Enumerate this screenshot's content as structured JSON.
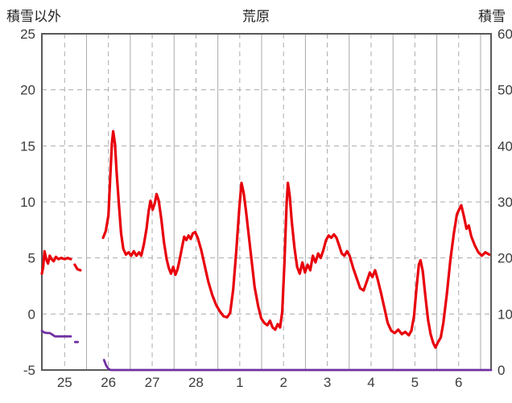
{
  "header": {
    "left_axis_title": "積雪以外",
    "title": "荒原",
    "right_axis_title": "積雪"
  },
  "chart_data": {
    "type": "line",
    "title": "荒原",
    "left_axis": {
      "label": "積雪以外",
      "min": -5,
      "max": 25,
      "ticks": [
        25,
        20,
        15,
        10,
        5,
        0,
        -5
      ]
    },
    "right_axis": {
      "label": "積雪",
      "min": 0,
      "max": 60,
      "ticks": [
        60,
        50,
        40,
        30,
        20,
        10,
        0
      ]
    },
    "x_axis": {
      "domain": [
        24.48,
        34.74
      ],
      "tick_days": [
        25,
        26,
        27,
        28,
        29,
        30,
        31,
        32,
        33,
        34
      ],
      "tick_labels": [
        "25",
        "26",
        "27",
        "28",
        "1",
        "2",
        "3",
        "4",
        "5",
        "6"
      ]
    },
    "grid": {
      "color": "#ababab",
      "h_dashed": [
        20,
        15,
        10,
        5,
        0
      ],
      "v_dashed_days": [
        25,
        26,
        27,
        28,
        29,
        30,
        31,
        32,
        33,
        34
      ],
      "v_solid_days": [
        25.5,
        26.5,
        27.5,
        28.5,
        29.5,
        30.5,
        31.5,
        32.5,
        33.5,
        34.5
      ]
    },
    "border_color": "#595959",
    "series": [
      {
        "name": "non-snow-temperature",
        "axis": "left",
        "color": "#e8000b",
        "width": 3.2,
        "segments": [
          [
            [
              24.48,
              3.6
            ],
            [
              24.51,
              4.2
            ],
            [
              24.54,
              5.6
            ],
            [
              24.58,
              4.9
            ],
            [
              24.62,
              4.5
            ],
            [
              24.66,
              5.2
            ],
            [
              24.7,
              4.9
            ],
            [
              24.75,
              4.7
            ],
            [
              24.8,
              5.1
            ],
            [
              24.86,
              4.9
            ],
            [
              24.92,
              5.0
            ],
            [
              25.0,
              4.9
            ],
            [
              25.07,
              5.0
            ],
            [
              25.14,
              4.9
            ]
          ],
          [
            [
              25.23,
              4.4
            ],
            [
              25.29,
              4.0
            ],
            [
              25.36,
              3.9
            ]
          ],
          [
            [
              25.88,
              6.8
            ],
            [
              25.94,
              7.4
            ],
            [
              26.0,
              8.8
            ],
            [
              26.04,
              12.0
            ],
            [
              26.08,
              15.2
            ],
            [
              26.11,
              16.3
            ],
            [
              26.15,
              15.2
            ],
            [
              26.19,
              12.5
            ],
            [
              26.24,
              9.8
            ],
            [
              26.29,
              7.2
            ],
            [
              26.34,
              5.8
            ],
            [
              26.4,
              5.3
            ],
            [
              26.46,
              5.5
            ],
            [
              26.52,
              5.2
            ],
            [
              26.58,
              5.6
            ],
            [
              26.64,
              5.2
            ],
            [
              26.7,
              5.5
            ],
            [
              26.75,
              5.2
            ],
            [
              26.81,
              6.2
            ],
            [
              26.87,
              7.6
            ],
            [
              26.92,
              9.2
            ],
            [
              26.96,
              10.1
            ],
            [
              27.01,
              9.3
            ],
            [
              27.06,
              9.9
            ],
            [
              27.1,
              10.7
            ],
            [
              27.15,
              10.1
            ],
            [
              27.21,
              8.4
            ],
            [
              27.27,
              6.4
            ],
            [
              27.33,
              4.9
            ],
            [
              27.38,
              4.1
            ],
            [
              27.43,
              3.6
            ],
            [
              27.48,
              4.2
            ],
            [
              27.53,
              3.5
            ],
            [
              27.58,
              4.0
            ],
            [
              27.63,
              4.9
            ],
            [
              27.68,
              5.9
            ],
            [
              27.73,
              6.9
            ],
            [
              27.78,
              6.6
            ],
            [
              27.83,
              7.0
            ],
            [
              27.88,
              6.7
            ],
            [
              27.93,
              7.2
            ],
            [
              27.98,
              7.3
            ],
            [
              28.04,
              6.8
            ],
            [
              28.12,
              5.7
            ],
            [
              28.2,
              4.3
            ],
            [
              28.28,
              2.9
            ],
            [
              28.37,
              1.7
            ],
            [
              28.46,
              0.8
            ],
            [
              28.55,
              0.2
            ],
            [
              28.63,
              -0.2
            ],
            [
              28.71,
              -0.3
            ],
            [
              28.78,
              0.1
            ],
            [
              28.85,
              2.2
            ],
            [
              28.92,
              5.6
            ],
            [
              28.99,
              9.5
            ],
            [
              29.04,
              11.7
            ],
            [
              29.09,
              10.8
            ],
            [
              29.14,
              9.3
            ],
            [
              29.2,
              7.2
            ],
            [
              29.27,
              4.8
            ],
            [
              29.34,
              2.4
            ],
            [
              29.42,
              0.7
            ],
            [
              29.49,
              -0.4
            ],
            [
              29.56,
              -0.8
            ],
            [
              29.63,
              -1.0
            ],
            [
              29.69,
              -0.6
            ],
            [
              29.75,
              -1.2
            ],
            [
              29.81,
              -1.4
            ],
            [
              29.87,
              -0.9
            ],
            [
              29.92,
              -1.2
            ],
            [
              29.97,
              0.2
            ],
            [
              30.02,
              4.5
            ],
            [
              30.07,
              9.8
            ],
            [
              30.1,
              11.7
            ],
            [
              30.14,
              10.6
            ],
            [
              30.19,
              8.2
            ],
            [
              30.25,
              5.9
            ],
            [
              30.31,
              4.2
            ],
            [
              30.37,
              3.6
            ],
            [
              30.43,
              4.6
            ],
            [
              30.49,
              3.7
            ],
            [
              30.55,
              4.4
            ],
            [
              30.61,
              3.9
            ],
            [
              30.67,
              5.2
            ],
            [
              30.73,
              4.6
            ],
            [
              30.79,
              5.4
            ],
            [
              30.85,
              5.0
            ],
            [
              30.91,
              5.7
            ],
            [
              30.97,
              6.6
            ],
            [
              31.03,
              7.0
            ],
            [
              31.09,
              6.8
            ],
            [
              31.15,
              7.1
            ],
            [
              31.21,
              6.8
            ],
            [
              31.27,
              6.1
            ],
            [
              31.33,
              5.4
            ],
            [
              31.39,
              5.2
            ],
            [
              31.45,
              5.6
            ],
            [
              31.51,
              5.2
            ],
            [
              31.59,
              4.1
            ],
            [
              31.67,
              3.2
            ],
            [
              31.75,
              2.3
            ],
            [
              31.83,
              2.1
            ],
            [
              31.91,
              3.0
            ],
            [
              31.97,
              3.7
            ],
            [
              32.03,
              3.3
            ],
            [
              32.09,
              3.9
            ],
            [
              32.15,
              3.1
            ],
            [
              32.22,
              2.0
            ],
            [
              32.3,
              0.6
            ],
            [
              32.38,
              -0.8
            ],
            [
              32.46,
              -1.5
            ],
            [
              32.54,
              -1.7
            ],
            [
              32.62,
              -1.4
            ],
            [
              32.7,
              -1.8
            ],
            [
              32.78,
              -1.6
            ],
            [
              32.86,
              -1.9
            ],
            [
              32.92,
              -1.5
            ],
            [
              32.98,
              -0.2
            ],
            [
              33.04,
              2.4
            ],
            [
              33.09,
              4.4
            ],
            [
              33.13,
              4.8
            ],
            [
              33.18,
              3.8
            ],
            [
              33.24,
              1.6
            ],
            [
              33.3,
              -0.5
            ],
            [
              33.36,
              -1.8
            ],
            [
              33.42,
              -2.6
            ],
            [
              33.47,
              -3.0
            ],
            [
              33.53,
              -2.5
            ],
            [
              33.59,
              -2.1
            ],
            [
              33.65,
              -0.8
            ],
            [
              33.73,
              1.8
            ],
            [
              33.81,
              4.8
            ],
            [
              33.89,
              7.2
            ],
            [
              33.96,
              8.9
            ],
            [
              34.02,
              9.4
            ],
            [
              34.06,
              9.7
            ],
            [
              34.12,
              8.7
            ],
            [
              34.18,
              7.6
            ],
            [
              34.23,
              7.9
            ],
            [
              34.29,
              6.9
            ],
            [
              34.37,
              6.1
            ],
            [
              34.45,
              5.5
            ],
            [
              34.53,
              5.2
            ],
            [
              34.61,
              5.5
            ],
            [
              34.7,
              5.3
            ]
          ]
        ]
      },
      {
        "name": "snow-depth",
        "axis": "right",
        "color": "#7030a0",
        "width": 2.8,
        "segments": [
          [
            [
              24.48,
              7.0
            ],
            [
              24.53,
              6.7
            ],
            [
              24.6,
              6.6
            ],
            [
              24.66,
              6.6
            ],
            [
              24.72,
              6.3
            ],
            [
              24.78,
              6.0
            ],
            [
              24.88,
              6.0
            ],
            [
              25.0,
              6.0
            ],
            [
              25.14,
              6.0
            ]
          ],
          [
            [
              25.24,
              5.0
            ],
            [
              25.3,
              5.0
            ]
          ],
          [
            [
              25.9,
              1.8
            ],
            [
              25.95,
              0.8
            ],
            [
              26.0,
              0.2
            ],
            [
              26.06,
              0.0
            ],
            [
              28.0,
              0.0
            ],
            [
              31.0,
              0.0
            ],
            [
              34.74,
              0.0
            ]
          ]
        ]
      }
    ]
  }
}
